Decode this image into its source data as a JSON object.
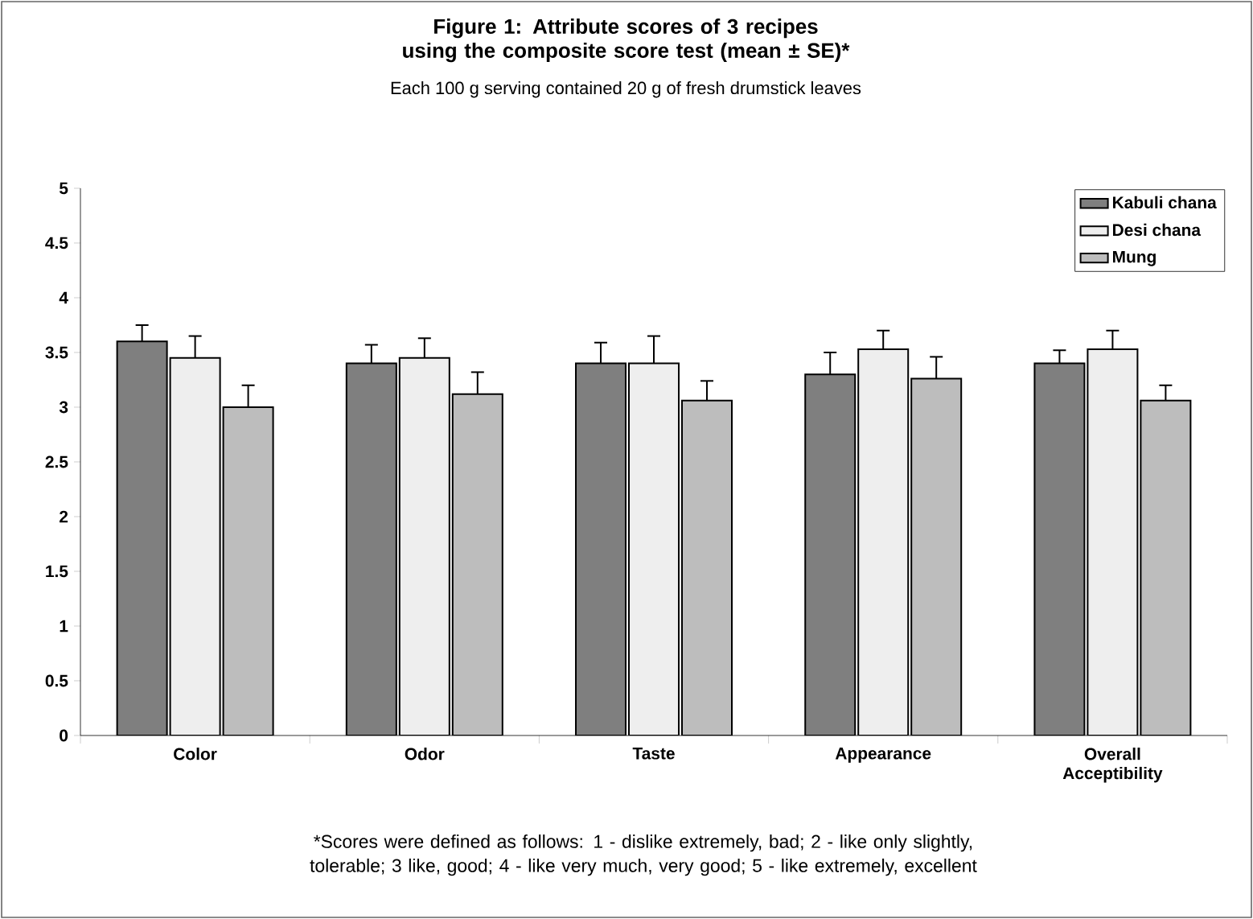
{
  "chart_data": {
    "type": "bar",
    "title": "Figure 1: Attribute scores of 3 recipes using the composite score test (mean ± SE)*",
    "subtitle": "Each 100 g serving contained 20 g of fresh drumstick leaves",
    "categories": [
      "Color",
      "Odor",
      "Taste",
      "Appearance",
      "Overall Acceptibility"
    ],
    "series": [
      {
        "name": "Kabuli chana",
        "color": "#7f7f7f",
        "values": [
          3.6,
          3.4,
          3.4,
          3.3,
          3.4
        ],
        "errors": [
          0.15,
          0.17,
          0.19,
          0.2,
          0.12
        ]
      },
      {
        "name": "Desi chana",
        "color": "#eeeeee",
        "values": [
          3.45,
          3.45,
          3.4,
          3.53,
          3.53
        ],
        "errors": [
          0.2,
          0.18,
          0.25,
          0.17,
          0.17
        ]
      },
      {
        "name": "Mung",
        "color": "#bdbdbd",
        "values": [
          3.0,
          3.12,
          3.06,
          3.26,
          3.06
        ],
        "errors": [
          0.2,
          0.2,
          0.18,
          0.2,
          0.14
        ]
      }
    ],
    "ylim": [
      0,
      5
    ],
    "yticks": [
      0,
      0.5,
      1,
      1.5,
      2,
      2.5,
      3,
      3.5,
      4,
      4.5,
      5
    ],
    "grid": false,
    "legend": "top right",
    "annotations": [
      "*Scores were defined as follows: 1 - dislike extremely, bad; 2 - like only slightly, tolerable; 3  like, good; 4 - like very much, very good; 5 - like extremely, excellent"
    ]
  }
}
